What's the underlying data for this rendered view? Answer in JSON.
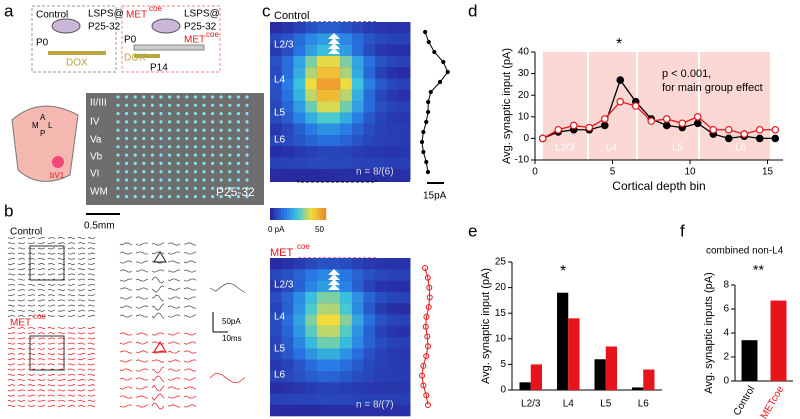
{
  "panel_a": {
    "label": "a",
    "control": "Control",
    "lsps1": "LSPS@",
    "age1": "P25-32",
    "p0_1": "P0",
    "dox1": "DOX",
    "met": "MET",
    "coe": "coe",
    "lsps2": "LSPS@",
    "age2": "P25-32",
    "p0_2": "P0",
    "dox2": "DOX",
    "p14": "P14",
    "met2": "MET",
    "coe2": "coe",
    "brain": [
      "A",
      "M",
      "L",
      "P",
      "bV1"
    ],
    "layers": [
      "II/III",
      "IV",
      "Va",
      "Vb",
      "VI",
      "WM"
    ],
    "slice_age": "P25-32",
    "scale": "0.5mm"
  },
  "panel_b": {
    "label": "b",
    "control": "Control",
    "met": "MET",
    "coe": "coe",
    "scale_y": "50pA",
    "scale_x": "10ms"
  },
  "panel_c": {
    "label": "c",
    "control": "Control",
    "layers_top": [
      "L2/3",
      "L4",
      "L5",
      "L6"
    ],
    "n_top": "n = 8/(6)",
    "scale": "15pA",
    "cbar_min": "0 pA",
    "cbar_max": "50",
    "met": "MET",
    "coe": "coe",
    "layers_bottom": [
      "L2/3",
      "L4",
      "L5",
      "L6"
    ],
    "n_bottom": "n = 8/(7)"
  },
  "panel_d": {
    "label": "d",
    "note1": "p < 0.001,",
    "note2": "for main group effect",
    "star": "*",
    "bands": [
      "L2/3",
      "L4",
      "L5",
      "L6"
    ]
  },
  "panel_e": {
    "label": "e",
    "star": "*"
  },
  "panel_f": {
    "label": "f",
    "subtitle": "combined non-L4",
    "star": "**"
  },
  "chart_data": [
    {
      "type": "line",
      "y_label": "Avg. synaptic input (pA)",
      "x_label": "Cortical depth bin",
      "x": [
        0.5,
        1.5,
        2.5,
        3.5,
        4.5,
        5.5,
        6.5,
        7.5,
        8.5,
        9.5,
        10.5,
        11.5,
        12.5,
        13.5,
        14.5,
        15.5
      ],
      "series": [
        {
          "color": "#000000",
          "values": [
            0,
            3,
            4,
            4,
            6,
            27,
            17,
            9,
            6,
            5,
            7,
            2,
            0,
            1,
            0,
            0
          ]
        },
        {
          "color": "#e8141b",
          "values": [
            0,
            4,
            6,
            5,
            9,
            17,
            15,
            8,
            9,
            7,
            10,
            4,
            4,
            2,
            4,
            4
          ]
        }
      ],
      "xlim": [
        0,
        16
      ],
      "xticks": [
        0,
        5,
        10,
        15
      ],
      "ylim": [
        -10,
        40
      ],
      "yticks": [
        -10,
        0,
        10,
        20,
        30,
        40
      ]
    },
    {
      "type": "bar",
      "y_label": "Avg. synaptic input (pA)",
      "categories": [
        "L2/3",
        "L4",
        "L5",
        "L6"
      ],
      "series": [
        {
          "color": "#000000",
          "values": [
            1.5,
            19,
            6,
            0.5
          ]
        },
        {
          "color": "#e8141b",
          "values": [
            5,
            14,
            8.5,
            4
          ]
        }
      ],
      "ylim": [
        0,
        25
      ],
      "yticks": [
        0,
        5,
        10,
        15,
        20,
        25
      ]
    },
    {
      "type": "bar",
      "y_label": "Avg. synaptic inputs (pA)",
      "categories": [
        "Control",
        "METcoe"
      ],
      "series": [
        {
          "colors": [
            "#000000",
            "#e8141b"
          ],
          "values": [
            3.4,
            6.7
          ]
        }
      ],
      "ylim": [
        0,
        8
      ],
      "yticks": [
        0,
        2,
        4,
        6,
        8
      ]
    }
  ]
}
